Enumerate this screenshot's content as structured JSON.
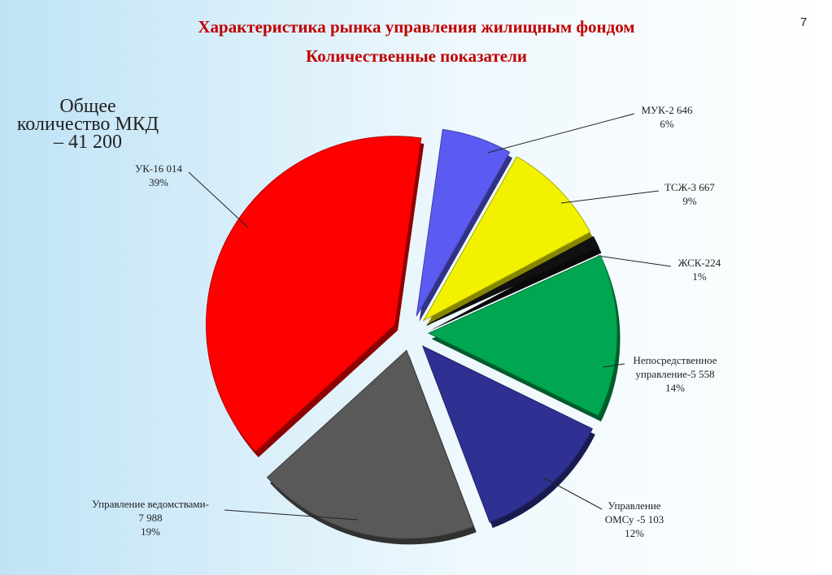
{
  "chart_data": {
    "type": "pie",
    "title": "Характеристика рынка управления жилищным фондом",
    "subtitle": "Количественные  показатели",
    "page_number": "7",
    "annotation": [
      "Общее",
      "количество МКД",
      "– 41 200"
    ],
    "categories": [
      "МУК-2 646",
      "ТСЖ-3 667",
      "ЖСК-224",
      "Непосредственное\nуправление-5 558",
      "Управление\nОМСу -5 103",
      "Управление ведомствами-\n7 988",
      "УК-16 014"
    ],
    "values": [
      6,
      9,
      1,
      14,
      12,
      19,
      39
    ],
    "value_labels": [
      "6%",
      "9%",
      "1%",
      "14%",
      "12%",
      "19%",
      "39%"
    ],
    "colors": [
      "#5b5bf2",
      "#f2f200",
      "#111111",
      "#00a650",
      "#2e3192",
      "#595959",
      "#ff0000"
    ]
  }
}
